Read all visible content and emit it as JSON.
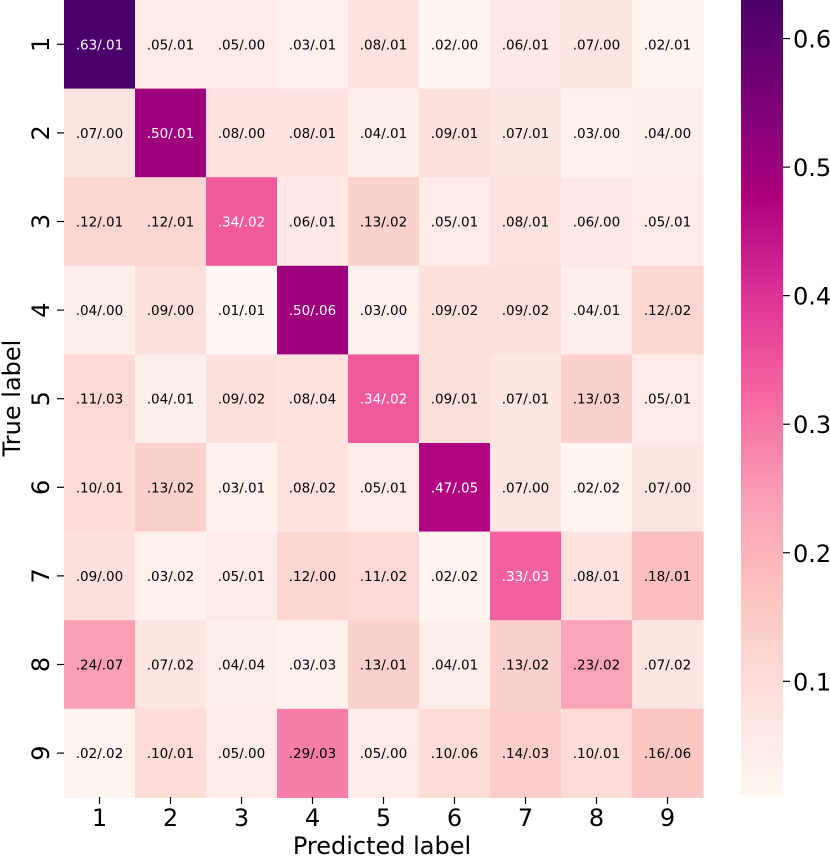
{
  "chart_data": {
    "type": "heatmap",
    "title": "",
    "xlabel": "Predicted label",
    "ylabel": "True label",
    "x_categories": [
      "1",
      "2",
      "3",
      "4",
      "5",
      "6",
      "7",
      "8",
      "9"
    ],
    "y_categories": [
      "1",
      "2",
      "3",
      "4",
      "5",
      "6",
      "7",
      "8",
      "9"
    ],
    "values": [
      [
        0.63,
        0.05,
        0.05,
        0.03,
        0.08,
        0.02,
        0.06,
        0.07,
        0.02
      ],
      [
        0.07,
        0.5,
        0.08,
        0.08,
        0.04,
        0.09,
        0.07,
        0.03,
        0.04
      ],
      [
        0.12,
        0.12,
        0.34,
        0.06,
        0.13,
        0.05,
        0.08,
        0.06,
        0.05
      ],
      [
        0.04,
        0.09,
        0.01,
        0.5,
        0.03,
        0.09,
        0.09,
        0.04,
        0.12
      ],
      [
        0.11,
        0.04,
        0.09,
        0.08,
        0.34,
        0.09,
        0.07,
        0.13,
        0.05
      ],
      [
        0.1,
        0.13,
        0.03,
        0.08,
        0.05,
        0.47,
        0.07,
        0.02,
        0.07
      ],
      [
        0.09,
        0.03,
        0.05,
        0.12,
        0.11,
        0.02,
        0.33,
        0.08,
        0.18
      ],
      [
        0.24,
        0.07,
        0.04,
        0.03,
        0.13,
        0.04,
        0.13,
        0.23,
        0.07
      ],
      [
        0.02,
        0.1,
        0.05,
        0.29,
        0.05,
        0.1,
        0.14,
        0.1,
        0.16
      ]
    ],
    "annotations": [
      [
        ".63/.01",
        ".05/.01",
        ".05/.00",
        ".03/.01",
        ".08/.01",
        ".02/.00",
        ".06/.01",
        ".07/.00",
        ".02/.01"
      ],
      [
        ".07/.00",
        ".50/.01",
        ".08/.00",
        ".08/.01",
        ".04/.01",
        ".09/.01",
        ".07/.01",
        ".03/.00",
        ".04/.00"
      ],
      [
        ".12/.01",
        ".12/.01",
        ".34/.02",
        ".06/.01",
        ".13/.02",
        ".05/.01",
        ".08/.01",
        ".06/.00",
        ".05/.01"
      ],
      [
        ".04/.00",
        ".09/.00",
        ".01/.01",
        ".50/.06",
        ".03/.00",
        ".09/.02",
        ".09/.02",
        ".04/.01",
        ".12/.02"
      ],
      [
        ".11/.03",
        ".04/.01",
        ".09/.02",
        ".08/.04",
        ".34/.02",
        ".09/.01",
        ".07/.01",
        ".13/.03",
        ".05/.01"
      ],
      [
        ".10/.01",
        ".13/.02",
        ".03/.01",
        ".08/.02",
        ".05/.01",
        ".47/.05",
        ".07/.00",
        ".02/.02",
        ".07/.00"
      ],
      [
        ".09/.00",
        ".03/.02",
        ".05/.01",
        ".12/.00",
        ".11/.02",
        ".02/.02",
        ".33/.03",
        ".08/.01",
        ".18/.01"
      ],
      [
        ".24/.07",
        ".07/.02",
        ".04/.04",
        ".03/.03",
        ".13/.01",
        ".04/.01",
        ".13/.02",
        ".23/.02",
        ".07/.02"
      ],
      [
        ".02/.02",
        ".10/.01",
        ".05/.00",
        ".29/.03",
        ".05/.00",
        ".10/.06",
        ".14/.03",
        ".10/.01",
        ".16/.06"
      ]
    ],
    "colorbar": {
      "range": [
        0.01,
        0.63
      ],
      "ticks": [
        0.1,
        0.2,
        0.3,
        0.4,
        0.5,
        0.6
      ],
      "tick_labels": [
        "0.1",
        "0.2",
        "0.3",
        "0.4",
        "0.5",
        "0.6"
      ]
    },
    "colormap": "RdPu",
    "grid": false
  },
  "colors": {
    "cmap_stops": [
      "#fff7f3",
      "#fde0dd",
      "#fcc5c0",
      "#fa9fb5",
      "#f768a1",
      "#dd3497",
      "#ae017e",
      "#7a0177",
      "#49006a"
    ],
    "dark_text": "#000000",
    "light_text": "#ffffff"
  }
}
